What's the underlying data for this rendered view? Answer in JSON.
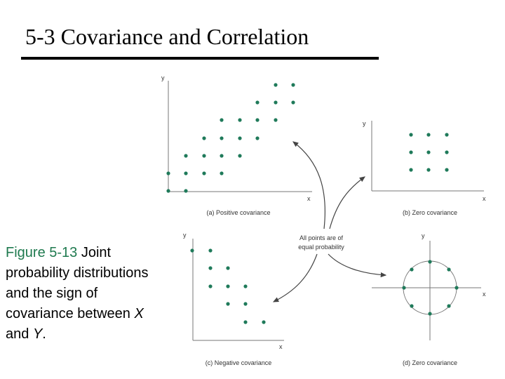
{
  "header": {
    "title": "5-3 Covariance and Correlation"
  },
  "caption": {
    "label": "Figure 5-13",
    "text": "Joint probability distributions and the sign of covariance between",
    "var_x": "X",
    "conj": "and",
    "var_y": "Y",
    "end": "."
  },
  "note": {
    "lines": [
      "All points are of",
      "equal probability"
    ]
  },
  "panels": [
    {
      "label": "(a) Positive covariance",
      "x_axis": "x",
      "y_axis": "y"
    },
    {
      "label": "(b) Zero covariance",
      "x_axis": "x",
      "y_axis": "y"
    },
    {
      "label": "(c) Negative covariance",
      "x_axis": "x",
      "y_axis": "y"
    },
    {
      "label": "(d) Zero covariance",
      "x_axis": "x",
      "y_axis": "y"
    }
  ]
}
